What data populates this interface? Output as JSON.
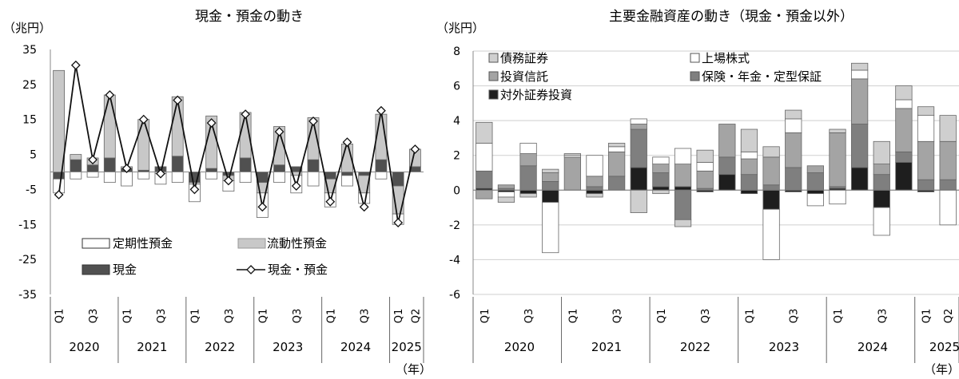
{
  "colors": {
    "liquid": "#c8c8c8",
    "term": "#ffffff",
    "cash": "#505050",
    "line": "#111111",
    "bond": "#cfcfcf",
    "equity": "#ffffff",
    "fund": "#a4a4a4",
    "insurance": "#7f7f7f",
    "outward": "#1e1e1e",
    "stroke": "#666666"
  },
  "chart_data": [
    {
      "type": "bar",
      "title": "現金・預金の動き",
      "ylabel": "（兆円）",
      "xlabel": "（年）",
      "ylim": [
        -35,
        35
      ],
      "yticks": [
        35,
        25,
        15,
        5,
        -5,
        -15,
        -25,
        -35
      ],
      "quarter_labels": [
        "Q1",
        "",
        "Q3",
        "",
        "Q1",
        "",
        "Q3",
        "",
        "Q1",
        "",
        "Q3",
        "",
        "Q1",
        "",
        "Q3",
        "",
        "Q1",
        "",
        "Q3",
        "",
        "Q1",
        "Q2"
      ],
      "years": [
        "2020",
        "2021",
        "2022",
        "2023",
        "2024",
        "2025"
      ],
      "legend": {
        "term": "定期性預金",
        "liquid": "流動性預金",
        "cash": "現金",
        "line": "現金・預金"
      },
      "series": {
        "term": [
          -4,
          -2,
          -1.5,
          -3,
          -4,
          -2,
          -3,
          -3,
          -5,
          -2,
          -3,
          -3,
          -7,
          -3,
          -5,
          -4,
          -4,
          -3,
          -3,
          -2,
          -3,
          0
        ],
        "liquid": [
          29,
          1.5,
          2,
          18,
          0.5,
          14.5,
          -0.5,
          17,
          -0.5,
          15,
          -1.5,
          13,
          -3,
          11,
          -1,
          12,
          -4,
          8,
          -5,
          13,
          -8,
          5
        ],
        "cash": [
          -2,
          3.5,
          2,
          4,
          1,
          0.5,
          1.5,
          4.5,
          -3,
          1,
          -1,
          4,
          -3,
          2,
          1.5,
          3.5,
          -2,
          -1,
          -1,
          3.5,
          -4,
          1.5
        ],
        "line": [
          -6.5,
          30.5,
          3.5,
          22,
          1,
          15,
          -0.5,
          20.5,
          -5,
          14,
          -2.5,
          16.5,
          -10,
          11.5,
          -4,
          14.5,
          -8.5,
          8.5,
          -10,
          17.5,
          -14.5,
          6.5
        ]
      }
    },
    {
      "type": "bar",
      "title": "主要金融資産の動き（現金・預金以外）",
      "ylabel": "（兆円）",
      "xlabel": "（年）",
      "ylim": [
        -6,
        8
      ],
      "yticks": [
        8,
        6,
        4,
        2,
        0,
        -2,
        -4,
        -6
      ],
      "quarter_labels": [
        "Q1",
        "",
        "Q3",
        "",
        "Q1",
        "",
        "Q3",
        "",
        "Q1",
        "",
        "Q3",
        "",
        "Q1",
        "",
        "Q3",
        "",
        "Q1",
        "",
        "Q3",
        "",
        "Q1",
        "Q2"
      ],
      "years": [
        "2020",
        "2021",
        "2022",
        "2023",
        "2024",
        "2025"
      ],
      "legend": {
        "bond": "債務証券",
        "equity": "上場株式",
        "fund": "投資信託",
        "insurance": "保険・年金・定型保証",
        "outward": "対外証券投資"
      },
      "series": {
        "outward": [
          0.1,
          -0.1,
          -0.2,
          -0.7,
          0,
          -0.2,
          0,
          1.3,
          0.2,
          0.2,
          -0.1,
          0.9,
          -0.2,
          -1.1,
          -0.1,
          -0.2,
          0.1,
          1.3,
          -1.0,
          1.6,
          -0.1,
          0
        ],
        "insurance": [
          1.0,
          0.1,
          1.4,
          0.5,
          0,
          0.2,
          0.8,
          2.2,
          0.8,
          -1.7,
          0.1,
          1.0,
          0.9,
          0.3,
          1.3,
          1.0,
          0.1,
          2.5,
          0.9,
          0.6,
          0.6,
          0.6
        ],
        "fund": [
          -0.5,
          0.2,
          0.7,
          0.5,
          1.9,
          0.6,
          1.4,
          0.3,
          0.5,
          1.3,
          1.0,
          1.9,
          0.9,
          1.6,
          2.0,
          0.4,
          3.1,
          2.6,
          0.6,
          2.5,
          2.2,
          2.2
        ],
        "equity": [
          1.6,
          -0.3,
          0.6,
          -2.9,
          0.1,
          1.2,
          0.3,
          0.3,
          0.4,
          0.9,
          0.5,
          0,
          0.4,
          -2.9,
          0.8,
          -0.7,
          -0.8,
          0.5,
          -1.6,
          0.5,
          1.5,
          -2.0
        ],
        "bond": [
          1.2,
          -0.3,
          -0.2,
          0.2,
          0.1,
          -0.2,
          0.2,
          -1.3,
          -0.2,
          -0.4,
          0.7,
          0,
          1.3,
          0.6,
          0.5,
          0,
          0.2,
          0.4,
          1.3,
          0.8,
          0.5,
          1.5
        ]
      }
    }
  ]
}
